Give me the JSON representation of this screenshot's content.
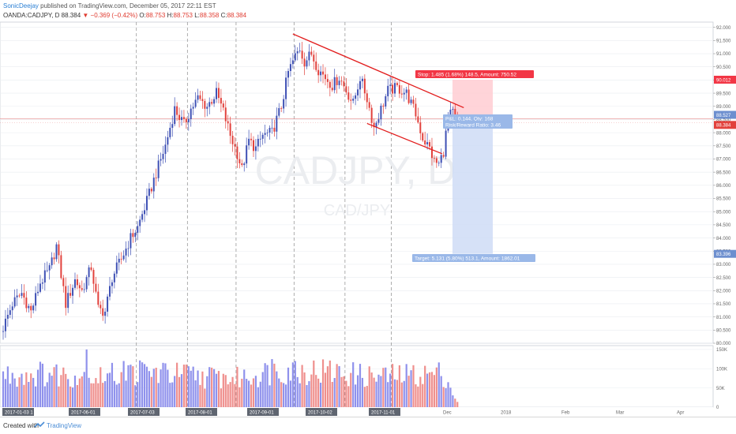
{
  "header": {
    "author": "SonicDeejay",
    "published": " published on TradingView.com, December 05, 2017 22:11 EST",
    "symbol": "OANDA:CADJPY, D",
    "last": "88.384",
    "change": "▼ −0.369 (−0.42%)",
    "o_label": "O:",
    "o": "88.753",
    "h_label": "H:",
    "h": "88.753",
    "l_label": "L:",
    "l": "88.358",
    "c_label": "C:",
    "c": "88.384"
  },
  "footer": {
    "created_with": "Created with",
    "brand": "TradingView"
  },
  "colors": {
    "up": "#3f51b5",
    "down": "#e2413c",
    "vol_up": "#8f91ec",
    "vol_down": "#ef8f8d",
    "trend": "#e21d1d",
    "stop_fill": "#ffcdd2",
    "target_fill": "#cfdcf6",
    "stop_label": "#f23645",
    "info_label": "#9ab8e8",
    "grid": "#e9ecf0",
    "axis_text": "#666666"
  },
  "chart_data": {
    "type": "candlestick",
    "symbol": "CADJPY",
    "timeframe": "D",
    "watermark": [
      "CADJPY, D",
      "CAD/JPY"
    ],
    "price_ticks": [
      "92.000",
      "91.500",
      "91.000",
      "90.500",
      "90.000",
      "89.500",
      "89.000",
      "88.500",
      "88.000",
      "87.500",
      "87.000",
      "86.500",
      "86.000",
      "85.500",
      "85.000",
      "84.500",
      "84.000",
      "83.500",
      "83.000",
      "82.500",
      "82.000",
      "81.500",
      "81.000",
      "80.500",
      "80.000"
    ],
    "price_range": [
      80.0,
      92.2
    ],
    "volume_ticks": [
      "150K",
      "100K",
      "50K",
      "0"
    ],
    "volume_range": [
      0,
      160000
    ],
    "time_labels": [
      "2017-01-03 1",
      "2017-06-01",
      "2017-07-03",
      "2017-08-01",
      "2017-09-01",
      "2017-10-02",
      "2017-11-01",
      "Dec",
      "2018",
      "Feb",
      "Mar",
      "Apr"
    ],
    "month_separators": [
      "2017-06-01",
      "2017-07-03",
      "2017-08-01",
      "2017-09-01",
      "2017-10-02",
      "2017-11-01"
    ],
    "close_path": [
      [
        0,
        80.6
      ],
      [
        4,
        81.5
      ],
      [
        8,
        81.9
      ],
      [
        12,
        81.2
      ],
      [
        16,
        82.3
      ],
      [
        20,
        82.8
      ],
      [
        23,
        83.7
      ],
      [
        27,
        81.5
      ],
      [
        31,
        82.4
      ],
      [
        34,
        82.0
      ],
      [
        38,
        82.9
      ],
      [
        41,
        81.3
      ],
      [
        44,
        81.2
      ],
      [
        47,
        82.5
      ],
      [
        51,
        83.2
      ],
      [
        55,
        84.0
      ],
      [
        58,
        84.4
      ],
      [
        62,
        85.4
      ],
      [
        65,
        86.2
      ],
      [
        70,
        87.5
      ],
      [
        74,
        88.9
      ],
      [
        78,
        88.3
      ],
      [
        81,
        88.9
      ],
      [
        84,
        89.3
      ],
      [
        88,
        89.0
      ],
      [
        92,
        89.5
      ],
      [
        95,
        88.8
      ],
      [
        98,
        87.9
      ],
      [
        101,
        87.2
      ],
      [
        103,
        86.6
      ],
      [
        106,
        87.7
      ],
      [
        109,
        87.4
      ],
      [
        112,
        87.9
      ],
      [
        116,
        88.0
      ],
      [
        120,
        89.0
      ],
      [
        123,
        90.3
      ],
      [
        126,
        90.9
      ],
      [
        128,
        91.2
      ],
      [
        130,
        90.7
      ],
      [
        133,
        91.0
      ],
      [
        136,
        90.4
      ],
      [
        139,
        90.1
      ],
      [
        142,
        89.8
      ],
      [
        145,
        90.1
      ],
      [
        148,
        89.6
      ],
      [
        151,
        89.1
      ],
      [
        154,
        90.1
      ],
      [
        157,
        89.3
      ],
      [
        160,
        88.2
      ],
      [
        163,
        88.9
      ],
      [
        166,
        89.6
      ],
      [
        170,
        89.7
      ],
      [
        174,
        89.5
      ],
      [
        178,
        88.7
      ],
      [
        181,
        87.8
      ],
      [
        184,
        87.4
      ],
      [
        186,
        86.9
      ],
      [
        188,
        86.8
      ],
      [
        190,
        87.3
      ],
      [
        192,
        88.6
      ],
      [
        194,
        88.75
      ],
      [
        196,
        88.38
      ]
    ],
    "volume_path": [
      [
        0,
        90000
      ],
      [
        20,
        95000
      ],
      [
        40,
        85000
      ],
      [
        60,
        100000
      ],
      [
        80,
        90000
      ],
      [
        100,
        80000
      ],
      [
        120,
        105000
      ],
      [
        140,
        100000
      ],
      [
        160,
        85000
      ],
      [
        175,
        90000
      ],
      [
        190,
        95000
      ],
      [
        196,
        15000
      ]
    ],
    "volume_spikes": [
      [
        36,
        150000
      ],
      [
        52,
        120000
      ],
      [
        116,
        125000
      ],
      [
        126,
        120000
      ]
    ],
    "drawings": {
      "upper_trendline": {
        "from": [
          125,
          91.75
        ],
        "to": [
          196,
          88.95
        ]
      },
      "lower_trendline": {
        "from": [
          157,
          88.35
        ],
        "to": [
          188,
          87.2
        ]
      },
      "current_price": 88.527,
      "last_price": 88.384
    },
    "position": {
      "type": "short",
      "entry": 88.527,
      "stop": 90.012,
      "target": 83.396,
      "stop_label": "Stop: 1.485 (1.68%) 148.5, Amount: 750.52",
      "info_label": "P&L: 0.144, Qty: 168",
      "ratio_label": "Risk/Reward Ratio: 3.46",
      "target_label": "Target: 5.131 (5.80%) 513.1, Amount: 1862.01"
    },
    "price_markers": [
      {
        "value": "90.012",
        "color": "#f23645"
      },
      {
        "value": "88.527",
        "color": "#6d8fcf"
      },
      {
        "value": "88.384",
        "color": "#e2413c"
      },
      {
        "value": "83.396",
        "color": "#6d8fcf"
      }
    ]
  }
}
